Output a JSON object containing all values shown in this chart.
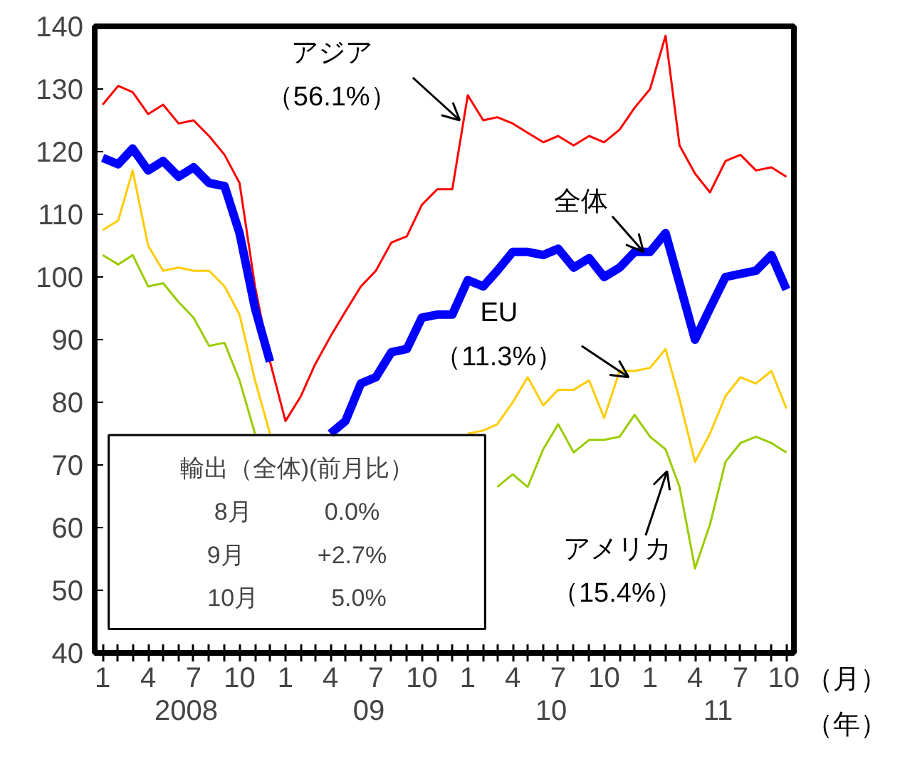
{
  "chart_data": {
    "type": "line",
    "x": [
      "2008-01",
      "2008-02",
      "2008-03",
      "2008-04",
      "2008-05",
      "2008-06",
      "2008-07",
      "2008-08",
      "2008-09",
      "2008-10",
      "2008-11",
      "2008-12",
      "2009-01",
      "2009-02",
      "2009-03",
      "2009-04",
      "2009-05",
      "2009-06",
      "2009-07",
      "2009-08",
      "2009-09",
      "2009-10",
      "2009-11",
      "2009-12",
      "2010-01",
      "2010-02",
      "2010-03",
      "2010-04",
      "2010-05",
      "2010-06",
      "2010-07",
      "2010-08",
      "2010-09",
      "2010-10",
      "2010-11",
      "2010-12",
      "2011-01",
      "2011-02",
      "2011-03",
      "2011-04",
      "2011-05",
      "2011-06",
      "2011-07",
      "2011-08",
      "2011-09",
      "2011-10"
    ],
    "series": [
      {
        "color": "#ff0000",
        "values": [
          127.5,
          130.5,
          129.5,
          126,
          127.5,
          124.5,
          125,
          122.5,
          119.5,
          115,
          98.5,
          86.5,
          77,
          81,
          86,
          90.5,
          94.5,
          98.5,
          101,
          105.5,
          106.5,
          111.5,
          114,
          114,
          129,
          125,
          125.5,
          124.5,
          123,
          121.5,
          122.5,
          121,
          122.5,
          121.5,
          123.5,
          127,
          130,
          138.5,
          121,
          116.5,
          113.5,
          118.5,
          119.5,
          117,
          117.5,
          116
        ]
      },
      {
        "color": "#ffcc00",
        "values": [
          107.5,
          109,
          117,
          105,
          101,
          101.5,
          101,
          101,
          98.5,
          94,
          83.5,
          75,
          null,
          null,
          null,
          null,
          null,
          null,
          null,
          null,
          null,
          null,
          null,
          null,
          75,
          75.5,
          76.5,
          80,
          84,
          79.5,
          82,
          82,
          83.5,
          77.5,
          85,
          85,
          85.5,
          88.5,
          80.5,
          70.5,
          75,
          81,
          84,
          83,
          85,
          79
        ]
      },
      {
        "color": "#99cc00",
        "values": [
          103.5,
          102,
          103.5,
          98.5,
          99,
          96,
          93.5,
          89,
          89.5,
          83.5,
          75,
          null,
          null,
          null,
          null,
          null,
          null,
          null,
          null,
          null,
          null,
          null,
          null,
          null,
          null,
          null,
          66.5,
          68.5,
          66.5,
          72.5,
          76.5,
          72,
          74,
          74,
          74.5,
          78,
          74.5,
          72.5,
          66.5,
          53.5,
          60.5,
          70.5,
          73.5,
          74.5,
          73.5,
          72
        ]
      },
      {
        "color": "#0000ff",
        "values": [
          119,
          118,
          120.5,
          117,
          118.5,
          116,
          117.5,
          115,
          114.5,
          107,
          95,
          86.5,
          null,
          null,
          null,
          75,
          77,
          83,
          84,
          88,
          88.5,
          93.5,
          94,
          94,
          99.5,
          98.5,
          101,
          104,
          104,
          103.5,
          104.5,
          101.5,
          103,
          100,
          101.5,
          104,
          104,
          107,
          99,
          90,
          95,
          100,
          100.5,
          101,
          103.5,
          98
        ]
      }
    ],
    "xlim": [
      "2007-12-16",
      "2011-10-16"
    ],
    "xticks": [
      {
        "value": "2008-01",
        "label": "1"
      },
      {
        "value": "2008-02",
        "label": null
      },
      {
        "value": "2008-03",
        "label": null
      },
      {
        "value": "2008-04",
        "label": "4"
      },
      {
        "value": "2008-05",
        "label": null
      },
      {
        "value": "2008-06",
        "label": null
      },
      {
        "value": "2008-07",
        "label": "7"
      },
      {
        "value": "2008-08",
        "label": null
      },
      {
        "value": "2008-09",
        "label": null
      },
      {
        "value": "2008-10",
        "label": "10"
      },
      {
        "value": "2008-11",
        "label": null
      },
      {
        "value": "2008-12",
        "label": null
      },
      {
        "value": "2009-01",
        "label": "1"
      },
      {
        "value": "2009-02",
        "label": null
      },
      {
        "value": "2009-03",
        "label": null
      },
      {
        "value": "2009-04",
        "label": "4"
      },
      {
        "value": "2009-05",
        "label": null
      },
      {
        "value": "2009-06",
        "label": null
      },
      {
        "value": "2009-07",
        "label": "7"
      },
      {
        "value": "2009-08",
        "label": null
      },
      {
        "value": "2009-09",
        "label": null
      },
      {
        "value": "2009-10",
        "label": "10"
      },
      {
        "value": "2009-11",
        "label": null
      },
      {
        "value": "2009-12",
        "label": null
      },
      {
        "value": "2010-01",
        "label": "1"
      },
      {
        "value": "2010-02",
        "label": null
      },
      {
        "value": "2010-03",
        "label": null
      },
      {
        "value": "2010-04",
        "label": "4"
      },
      {
        "value": "2010-05",
        "label": null
      },
      {
        "value": "2010-06",
        "label": null
      },
      {
        "value": "2010-07",
        "label": "7"
      },
      {
        "value": "2010-08",
        "label": null
      },
      {
        "value": "2010-09",
        "label": null
      },
      {
        "value": "2010-10",
        "label": "10"
      },
      {
        "value": "2010-11",
        "label": null
      },
      {
        "value": "2010-12",
        "label": null
      },
      {
        "value": "2011-01",
        "label": "1"
      },
      {
        "value": "2011-02",
        "label": null
      },
      {
        "value": "2011-03",
        "label": null
      },
      {
        "value": "2011-04",
        "label": "4"
      },
      {
        "value": "2011-05",
        "label": null
      },
      {
        "value": "2011-06",
        "label": null
      },
      {
        "value": "2011-07",
        "label": "7"
      },
      {
        "value": "2011-08",
        "label": null
      },
      {
        "value": "2011-09",
        "label": null
      },
      {
        "value": "2011-10",
        "label": "10"
      }
    ],
    "ylim": [
      40,
      140
    ],
    "yticks": [
      40,
      50,
      60,
      70,
      80,
      90,
      100,
      110,
      120,
      130,
      140
    ],
    "grid": false,
    "line_style": "solid",
    "marker": "none",
    "annotations": [
      {
        "text": "アジア（56.1%）",
        "x": "2009-12-16",
        "y": 125
      },
      {
        "text": "全体",
        "x": "2010-12-19",
        "y": 104
      },
      {
        "text": "EU（11.3%）",
        "x": "2010-11-19",
        "y": 84
      },
      {
        "text": "アメリカ（15.4%）",
        "x": "2011-02-04",
        "y": 69
      },
      "輸出（全体)(前月比）",
      "8月\t0.0%",
      "9月\t+2.7%",
      "10月\t5.0%",
      "（月）",
      "（年）",
      "2008",
      "09",
      "10",
      "11"
    ]
  }
}
